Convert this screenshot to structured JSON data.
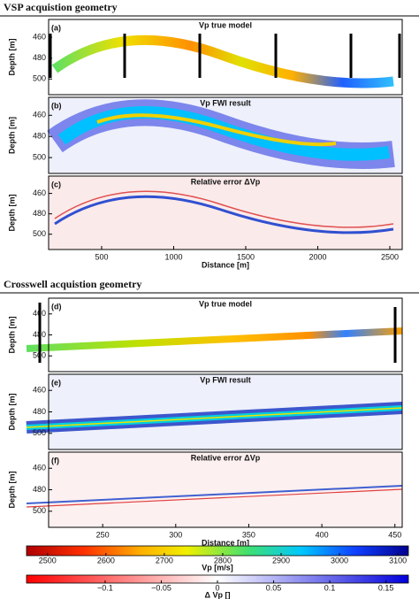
{
  "sections": [
    {
      "title": "VSP acquistion geometry"
    },
    {
      "title": "Crosswell acquistion geometry"
    }
  ],
  "chart_data": [
    {
      "type": "heatmap",
      "label": "(a)",
      "title": "Vp true model",
      "ylabel": "Depth [m]",
      "xlim": [
        132,
        2586
      ],
      "ylim": [
        443,
        515
      ],
      "yticks": [
        460,
        480,
        500
      ]
    },
    {
      "type": "heatmap",
      "label": "(b)",
      "title": "Vp FWI result",
      "ylabel": "Depth [m]",
      "xlim": [
        132,
        2586
      ],
      "ylim": [
        443,
        515
      ],
      "yticks": [
        460,
        480,
        500
      ]
    },
    {
      "type": "heatmap",
      "label": "(c)",
      "title": "Relative error ΔVp",
      "ylabel": "Depth [m]",
      "xlim": [
        132,
        2586
      ],
      "ylim": [
        443,
        515
      ],
      "yticks": [
        460,
        480,
        500
      ],
      "xticks": [
        500,
        1000,
        1500,
        2000,
        2500
      ],
      "xlabel": "Distance [m]"
    },
    {
      "type": "heatmap",
      "label": "(d)",
      "title": "Vp true model",
      "ylabel": "Depth [m]",
      "xlim": [
        213,
        455
      ],
      "ylim": [
        445,
        515
      ],
      "yticks": [
        460,
        480,
        500
      ]
    },
    {
      "type": "heatmap",
      "label": "(e)",
      "title": "Vp FWI result",
      "ylabel": "Depth [m]",
      "xlim": [
        213,
        455
      ],
      "ylim": [
        445,
        515
      ],
      "yticks": [
        460,
        480,
        500
      ]
    },
    {
      "type": "heatmap",
      "label": "(f)",
      "title": "Relative error ΔVp",
      "ylabel": "Depth [m]",
      "xlim": [
        213,
        455
      ],
      "ylim": [
        445,
        515
      ],
      "yticks": [
        460,
        480,
        500
      ],
      "xticks": [
        250,
        300,
        350,
        400,
        450
      ],
      "xlabel": "Distance [m]"
    },
    {
      "type": "colorbar",
      "xlim": [
        2464,
        3118
      ],
      "xticks": [
        2500,
        2600,
        2700,
        2800,
        2900,
        3000,
        3100
      ],
      "xlabel": "Vp [m/s]"
    },
    {
      "type": "colorbar",
      "xlim": [
        -0.17,
        0.17
      ],
      "xticks": [
        {
          "value": -0.1,
          "label": "−0.1"
        },
        {
          "value": -0.05,
          "label": "−0.05"
        },
        0,
        0.05,
        0.1,
        0.15
      ],
      "xlabel": "Δ Vp []"
    }
  ]
}
